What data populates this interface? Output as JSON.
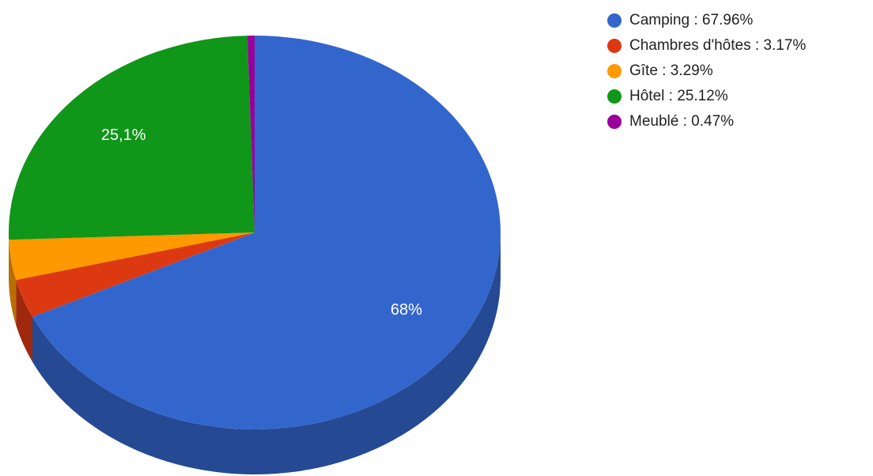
{
  "chart_data": {
    "type": "pie",
    "variant": "3d",
    "categories": [
      "Camping",
      "Chambres d'hôtes",
      "Gîte",
      "Hôtel",
      "Meublé"
    ],
    "values": [
      67.96,
      3.17,
      3.29,
      25.12,
      0.47
    ],
    "colors": [
      "#3366cc",
      "#dc3912",
      "#ff9900",
      "#109618",
      "#990099"
    ],
    "legend_labels": [
      "Camping : 67.96%",
      "Chambres d'hôtes : 3.17%",
      "Gîte : 3.29%",
      "Hôtel : 25.12%",
      "Meublé : 0.47%"
    ],
    "slice_labels": [
      "68%",
      "",
      "",
      "25,1%",
      ""
    ],
    "legend_position": "right",
    "start_angle": "top",
    "direction": "clockwise"
  }
}
